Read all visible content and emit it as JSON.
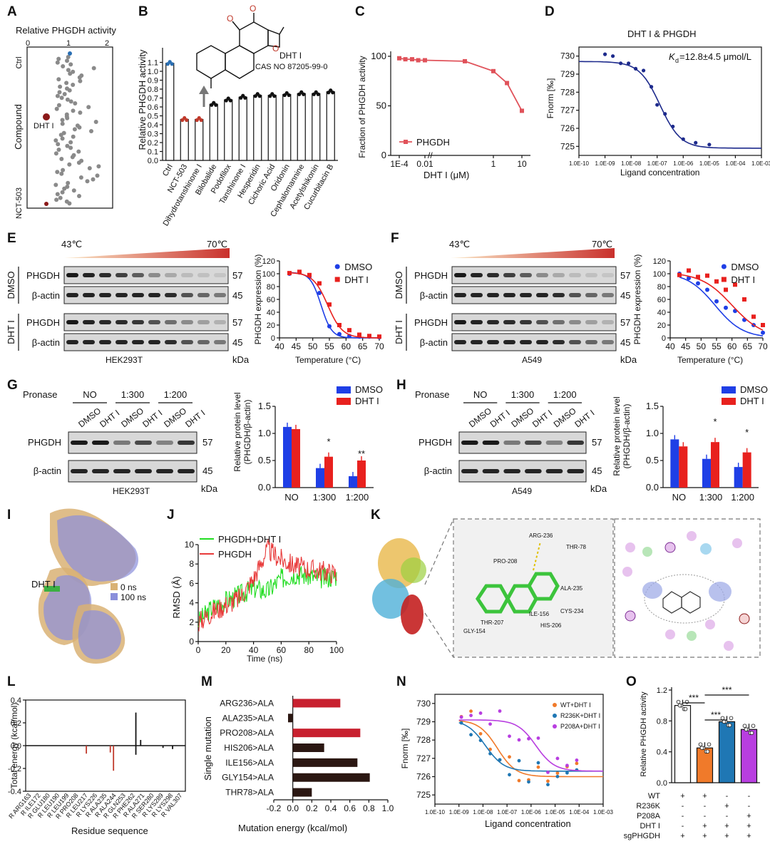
{
  "panels": {
    "A": {
      "label": "A",
      "title": "Relative PHGDH activity",
      "xticks": [
        "0",
        "1",
        "2"
      ],
      "ylabel": "Compound",
      "top": "Ctrl",
      "bottom": "NCT-503",
      "highlight": "DHT I"
    },
    "B": {
      "label": "B",
      "ylabel": "Relative PHGDH activity",
      "compound": "DHT I",
      "cas": "CAS NO 87205-99-0",
      "yticks": [
        "0.0",
        "0.1",
        "0.2",
        "0.3",
        "0.4",
        "0.5",
        "0.6",
        "0.7",
        "0.8",
        "0.9",
        "1.0",
        "1.1"
      ]
    },
    "C": {
      "label": "C",
      "ylabel": "Fraction of PHGDH activity",
      "xlabel": "DHT I (μM)",
      "legend": "PHGDH",
      "xticks": [
        "1E-4",
        "0.01",
        "1",
        "10"
      ],
      "yticks": [
        "0",
        "50",
        "100"
      ]
    },
    "D": {
      "label": "D",
      "title": "DHT I & PHGDH",
      "kd": "=12.8±4.5 μmol/L",
      "kd_symbol": "K",
      "kd_sub": "d",
      "ylabel": "Fnorm [‰]",
      "xlabel": "Ligand concentration",
      "yticks": [
        "725",
        "726",
        "727",
        "728",
        "729",
        "730"
      ],
      "xticks": [
        "1.0E-10",
        "1.0E-09",
        "1.0E-08",
        "1.0E-07",
        "1.0E-06",
        "1.0E-05",
        "1.0E-04",
        "1.0E-03"
      ]
    },
    "E": {
      "label": "E",
      "t_low": "43℃",
      "t_high": "70℃",
      "rows": [
        "PHGDH",
        "β-actin",
        "PHGDH",
        "β-actin"
      ],
      "groups": [
        "DMSO",
        "DHT I"
      ],
      "kda": [
        "57",
        "45",
        "57",
        "45"
      ],
      "kda_unit": "kDa",
      "cell": "HEK293T",
      "ylabel": "PHGDH expression (%)",
      "xlabel": "Temperature (°C)",
      "legend": [
        "DMSO",
        "DHT I"
      ],
      "xticks": [
        "40",
        "45",
        "50",
        "55",
        "60",
        "65",
        "70"
      ],
      "yticks": [
        "0",
        "20",
        "40",
        "60",
        "80",
        "100",
        "120"
      ]
    },
    "F": {
      "label": "F",
      "t_low": "43℃",
      "t_high": "70℃",
      "rows": [
        "PHGDH",
        "β-actin",
        "PHGDH",
        "β-actin"
      ],
      "groups": [
        "DMSO",
        "DHT I"
      ],
      "kda": [
        "57",
        "45",
        "57",
        "45"
      ],
      "kda_unit": "kDa",
      "cell": "A549",
      "ylabel": "PHGDH expression (%)",
      "xlabel": "Temperature (°C)",
      "legend": [
        "DMSO",
        "DHT I"
      ],
      "xticks": [
        "40",
        "45",
        "50",
        "55",
        "60",
        "65",
        "70"
      ],
      "yticks": [
        "0",
        "20",
        "40",
        "60",
        "80",
        "100",
        "120"
      ]
    },
    "G": {
      "label": "G",
      "pronase": "Pronase",
      "conds": [
        "NO",
        "1:300",
        "1:200"
      ],
      "lanes": [
        "DMSO",
        "DHT I",
        "DMSO",
        "DHT I",
        "DMSO",
        "DHT I"
      ],
      "rows": [
        "PHGDH",
        "β-actin"
      ],
      "kda": [
        "57",
        "45"
      ],
      "kda_unit": "kDa",
      "cell": "HEK293T",
      "ylabel": "Relative protein level (PHGDH/β-actin)",
      "legend": [
        "DMSO",
        "DHT I"
      ],
      "yticks": [
        "0.0",
        "0.5",
        "1.0",
        "1.5"
      ],
      "stars": [
        "*",
        "**"
      ]
    },
    "H": {
      "label": "H",
      "pronase": "Pronase",
      "conds": [
        "NO",
        "1:300",
        "1:200"
      ],
      "lanes": [
        "DMSO",
        "DHT I",
        "DMSO",
        "DHT I",
        "DMSO",
        "DHT I"
      ],
      "rows": [
        "PHGDH",
        "β-actin"
      ],
      "kda": [
        "57",
        "45"
      ],
      "kda_unit": "kDa",
      "cell": "A549",
      "ylabel": "Relative protein level (PHGDH/β-actin)",
      "legend": [
        "DMSO",
        "DHT I"
      ],
      "yticks": [
        "0.0",
        "0.5",
        "1.0",
        "1.5"
      ],
      "stars": [
        "*",
        "*"
      ]
    },
    "I": {
      "label": "I",
      "ligand": "DHT I",
      "legend": [
        "0 ns",
        "100 ns"
      ]
    },
    "J": {
      "label": "J",
      "legend": [
        "PHGDH+DHT I",
        "PHGDH"
      ],
      "ylabel": "RMSD (Å)",
      "xlabel": "Time (ns)",
      "xticks": [
        "0",
        "20",
        "40",
        "60",
        "80",
        "100"
      ],
      "yticks": [
        "0",
        "2",
        "4",
        "6",
        "8",
        "10"
      ]
    },
    "K": {
      "label": "K",
      "residues": [
        "ARG-236",
        "PRO-208",
        "THR-78",
        "THR-207",
        "ALA-235",
        "CYS-234",
        "GLY-154",
        "ILE-156",
        "HIS-206"
      ]
    },
    "L": {
      "label": "L",
      "ylabel": "Total energy (kcal/mol)",
      "xlabel": "Residue sequence",
      "yticks": [
        "-0.4",
        "-0.2",
        "0.0",
        "0.2",
        "0.4"
      ],
      "residues": [
        "R ARG163",
        "R ILE172",
        "R GLU180",
        "R LEU190",
        "R LEU199",
        "R PRO208",
        "R LEU217",
        "R LYS226",
        "R ALA235",
        "R ALA244",
        "R GLN253",
        "R PHE262",
        "R ALA271",
        "R SER280",
        "R LYS289",
        "R LYS298",
        "R VAL307"
      ]
    },
    "M": {
      "label": "M",
      "ylabel": "Single mutation",
      "xlabel": "Mutation energy (kcal/mol)",
      "xticks": [
        "-0.2",
        "0.0",
        "0.2",
        "0.4",
        "0.6",
        "0.8",
        "1.0"
      ],
      "mutations": [
        "ARG236>ALA",
        "ALA235>ALA",
        "PRO208>ALA",
        "HIS206>ALA",
        "ILE156>ALA",
        "GLY154>ALA",
        "THR78>ALA"
      ]
    },
    "N": {
      "label": "N",
      "ylabel": "Fnorm [‰]",
      "xlabel": "Ligand concentration",
      "legend": [
        "WT+DHT I",
        "R236K+DHT I",
        "P208A+DHT I"
      ],
      "yticks": [
        "725",
        "726",
        "727",
        "728",
        "729",
        "730"
      ],
      "xticks": [
        "1.0E-10",
        "1.0E-09",
        "1.0E-08",
        "1.0E-07",
        "1.0E-06",
        "1.0E-05",
        "1.0E-04",
        "1.0E-03"
      ]
    },
    "O": {
      "label": "O",
      "ylabel": "Relative PHGDH activity",
      "yticks": [
        "0.0",
        "0.4",
        "0.8",
        "1.2"
      ],
      "sig": [
        "***",
        "***",
        "***"
      ],
      "table_rows": [
        "WT",
        "R236K",
        "P208A",
        "DHT I",
        "sgPHGDH"
      ],
      "table": [
        [
          "+",
          "+",
          "-",
          "-"
        ],
        [
          "-",
          "-",
          "+",
          "-"
        ],
        [
          "-",
          "-",
          "-",
          "+"
        ],
        [
          "-",
          "+",
          "+",
          "+"
        ],
        [
          "+",
          "+",
          "+",
          "+"
        ]
      ]
    }
  },
  "chart_data": [
    {
      "panel": "B",
      "type": "bar",
      "ylabel": "Relative PHGDH activity",
      "ylim": [
        0,
        1.2
      ],
      "categories": [
        "Ctrl",
        "NCT-503",
        "Dihydrotanshinone I",
        "Bilobalide",
        "Podofilox",
        "Tanshinone I",
        "Hesperidin",
        "Cichoric Acid",
        "Oridonin",
        "Cephalomannine",
        "Acetylshikonin",
        "Cucurbitacin B"
      ],
      "values": [
        1.09,
        0.46,
        0.46,
        0.63,
        0.68,
        0.71,
        0.73,
        0.73,
        0.74,
        0.75,
        0.75,
        0.77
      ]
    },
    {
      "panel": "C",
      "type": "line",
      "xlabel": "DHT I (μM)",
      "ylabel": "Fraction of PHGDH activity",
      "series": [
        {
          "name": "PHGDH",
          "x": [
            0.0001,
            0.0003,
            0.001,
            0.003,
            0.01,
            0.1,
            1,
            3,
            10
          ],
          "y": [
            98,
            97,
            97,
            96,
            96,
            95,
            85,
            73,
            45
          ]
        }
      ]
    },
    {
      "panel": "D",
      "type": "scatter",
      "xlabel": "Ligand concentration",
      "ylabel": "Fnorm [‰]",
      "ylim": [
        724.5,
        730.5
      ],
      "x": [
        1e-09,
        2e-09,
        4e-09,
        8e-09,
        1.5e-08,
        3e-08,
        6e-08,
        1e-07,
        2e-07,
        4e-07,
        1e-06,
        3e-06,
        1e-05
      ],
      "y": [
        730.1,
        730.0,
        729.6,
        729.6,
        729.3,
        729.2,
        728.3,
        727.3,
        726.8,
        726.1,
        725.4,
        725.2,
        725.1
      ]
    },
    {
      "panel": "E",
      "type": "line",
      "xlabel": "Temperature (°C)",
      "ylabel": "PHGDH expression (%)",
      "x": [
        43,
        46,
        49,
        52,
        55,
        58,
        61,
        64,
        67,
        70
      ],
      "series": [
        {
          "name": "DMSO",
          "values": [
            100,
            102,
            95,
            70,
            18,
            6,
            3,
            2,
            2,
            1
          ]
        },
        {
          "name": "DHT I",
          "values": [
            101,
            103,
            98,
            85,
            52,
            20,
            12,
            5,
            3,
            2
          ]
        }
      ]
    },
    {
      "panel": "F",
      "type": "line",
      "xlabel": "Temperature (°C)",
      "ylabel": "PHGDH expression (%)",
      "x": [
        43,
        46,
        49,
        52,
        55,
        58,
        61,
        64,
        67,
        70
      ],
      "series": [
        {
          "name": "DMSO",
          "values": [
            100,
            93,
            85,
            75,
            57,
            47,
            42,
            28,
            20,
            8
          ]
        },
        {
          "name": "DHT I",
          "values": [
            98,
            105,
            95,
            97,
            88,
            75,
            83,
            60,
            33,
            20
          ]
        }
      ]
    },
    {
      "panel": "G",
      "type": "bar",
      "categories": [
        "NO",
        "1:300",
        "1:200"
      ],
      "ylabel": "Relative protein level (PHGDH/β-actin)",
      "series": [
        {
          "name": "DMSO",
          "values": [
            1.12,
            0.36,
            0.21
          ]
        },
        {
          "name": "DHT I",
          "values": [
            1.08,
            0.57,
            0.5
          ]
        }
      ]
    },
    {
      "panel": "H",
      "type": "bar",
      "categories": [
        "NO",
        "1:300",
        "1:200"
      ],
      "ylabel": "Relative protein level (PHGDH/β-actin)",
      "series": [
        {
          "name": "DMSO",
          "values": [
            0.89,
            0.53,
            0.38
          ]
        },
        {
          "name": "DHT I",
          "values": [
            0.76,
            0.84,
            0.65
          ]
        }
      ]
    },
    {
      "panel": "J",
      "type": "line",
      "xlabel": "Time (ns)",
      "ylabel": "RMSD (Å)",
      "x": [
        0,
        10,
        20,
        30,
        40,
        50,
        60,
        70,
        80,
        90,
        100
      ],
      "series": [
        {
          "name": "PHGDH+DHT I",
          "values": [
            2,
            3.5,
            4.2,
            4.8,
            5.5,
            5.2,
            6.5,
            7.0,
            6.8,
            6.5,
            6.8
          ]
        },
        {
          "name": "PHGDH",
          "values": [
            2,
            3.0,
            3.8,
            4.5,
            6.5,
            9.5,
            8.5,
            7.8,
            7.5,
            7.3,
            7.0
          ]
        }
      ]
    },
    {
      "panel": "M",
      "type": "bar",
      "xlabel": "Mutation energy (kcal/mol)",
      "categories": [
        "ARG236>ALA",
        "ALA235>ALA",
        "PRO208>ALA",
        "HIS206>ALA",
        "ILE156>ALA",
        "GLY154>ALA",
        "THR78>ALA"
      ],
      "values": [
        0.5,
        -0.05,
        0.71,
        0.33,
        0.68,
        0.81,
        0.2
      ]
    },
    {
      "panel": "O",
      "type": "bar",
      "ylabel": "Relative PHGDH activity",
      "ylim": [
        0,
        1.2
      ],
      "categories": [
        "1",
        "2",
        "3",
        "4"
      ],
      "values": [
        1.0,
        0.45,
        0.79,
        0.69
      ]
    }
  ]
}
